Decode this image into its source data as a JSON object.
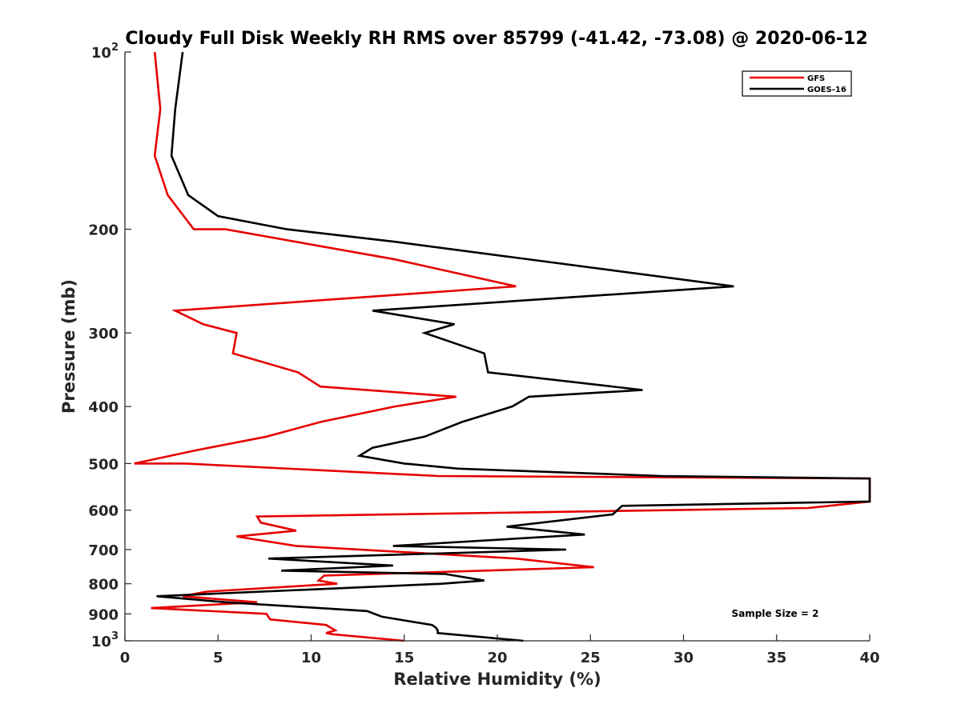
{
  "chart_data": {
    "type": "line",
    "title": "Cloudy Full Disk Weekly RH RMS over 85799 (-41.42, -73.08) @ 2020-06-12",
    "xlabel": "Relative Humidity (%)",
    "ylabel": "Pressure (mb)",
    "xlim": [
      0,
      40
    ],
    "ylim": [
      100,
      1000
    ],
    "y_scale": "log",
    "y_reversed": true,
    "grid": false,
    "legend_position": "top-right",
    "x_ticks": [
      "0",
      "5",
      "10",
      "15",
      "20",
      "25",
      "30",
      "35",
      "40"
    ],
    "x_tick_values": [
      0,
      5,
      10,
      15,
      20,
      25,
      30,
      35,
      40
    ],
    "y_ticks": [
      {
        "value": 100,
        "base": "10",
        "exp": "2"
      },
      {
        "value": 200,
        "label": "200"
      },
      {
        "value": 300,
        "label": "300"
      },
      {
        "value": 400,
        "label": "400"
      },
      {
        "value": 500,
        "label": "500"
      },
      {
        "value": 600,
        "label": "600"
      },
      {
        "value": 700,
        "label": "700"
      },
      {
        "value": 800,
        "label": "800"
      },
      {
        "value": 900,
        "label": "900"
      },
      {
        "value": 1000,
        "base": "10",
        "exp": "3"
      }
    ],
    "annotation": "Sample Size = 2",
    "series": [
      {
        "name": "GFS",
        "color": "#e60000",
        "points": [
          [
            1.6,
            100
          ],
          [
            1.9,
            125
          ],
          [
            1.6,
            150
          ],
          [
            2.3,
            175
          ],
          [
            3.7,
            200
          ],
          [
            5.4,
            200
          ],
          [
            14.5,
            225
          ],
          [
            21,
            250
          ],
          [
            2.7,
            275
          ],
          [
            4.2,
            290
          ],
          [
            6,
            300
          ],
          [
            5.8,
            325
          ],
          [
            9.3,
            350
          ],
          [
            10.5,
            370
          ],
          [
            17.8,
            385
          ],
          [
            14.5,
            400
          ],
          [
            10.5,
            425
          ],
          [
            7.6,
            450
          ],
          [
            3.8,
            475
          ],
          [
            0.5,
            500
          ],
          [
            3.2,
            500
          ],
          [
            16.8,
            525
          ],
          [
            40,
            530
          ],
          [
            40,
            580
          ],
          [
            36.7,
            595
          ],
          [
            7.1,
            615
          ],
          [
            7.3,
            630
          ],
          [
            9.2,
            650
          ],
          [
            6,
            665
          ],
          [
            9.2,
            690
          ],
          [
            21,
            725
          ],
          [
            25.2,
            750
          ],
          [
            10.7,
            775
          ],
          [
            10.4,
            790
          ],
          [
            11.4,
            800
          ],
          [
            4.4,
            825
          ],
          [
            3.1,
            840
          ],
          [
            7.1,
            860
          ],
          [
            1.4,
            880
          ],
          [
            7.6,
            900
          ],
          [
            7.8,
            920
          ],
          [
            10.8,
            940
          ],
          [
            11.3,
            960
          ],
          [
            10.8,
            970
          ],
          [
            11.2,
            975
          ],
          [
            15,
            1000
          ]
        ]
      },
      {
        "name": "GOES-16",
        "color": "#000000",
        "points": [
          [
            3.1,
            100
          ],
          [
            2.7,
            125
          ],
          [
            2.5,
            150
          ],
          [
            3.4,
            175
          ],
          [
            5,
            190
          ],
          [
            8.7,
            200
          ],
          [
            14.5,
            210
          ],
          [
            32.7,
            250
          ],
          [
            13.3,
            275
          ],
          [
            17.7,
            290
          ],
          [
            16.1,
            300
          ],
          [
            19.3,
            325
          ],
          [
            19.5,
            350
          ],
          [
            27.8,
            375
          ],
          [
            21.7,
            385
          ],
          [
            20.8,
            400
          ],
          [
            18.1,
            425
          ],
          [
            16.1,
            450
          ],
          [
            13.3,
            470
          ],
          [
            12.6,
            485
          ],
          [
            15,
            500
          ],
          [
            17.9,
            510
          ],
          [
            28.8,
            525
          ],
          [
            40,
            530
          ],
          [
            40,
            580
          ],
          [
            26.7,
            590
          ],
          [
            26.2,
            610
          ],
          [
            20.5,
            640
          ],
          [
            24.7,
            660
          ],
          [
            14.4,
            690
          ],
          [
            23.7,
            700
          ],
          [
            7.7,
            725
          ],
          [
            14.4,
            745
          ],
          [
            8.4,
            760
          ],
          [
            17.2,
            770
          ],
          [
            19.3,
            790
          ],
          [
            17,
            800
          ],
          [
            1.7,
            840
          ],
          [
            5.4,
            860
          ],
          [
            13,
            890
          ],
          [
            13.8,
            910
          ],
          [
            16.5,
            940
          ],
          [
            16.7,
            950
          ],
          [
            16.8,
            960
          ],
          [
            16.8,
            970
          ],
          [
            21.4,
            1000
          ]
        ]
      }
    ]
  }
}
